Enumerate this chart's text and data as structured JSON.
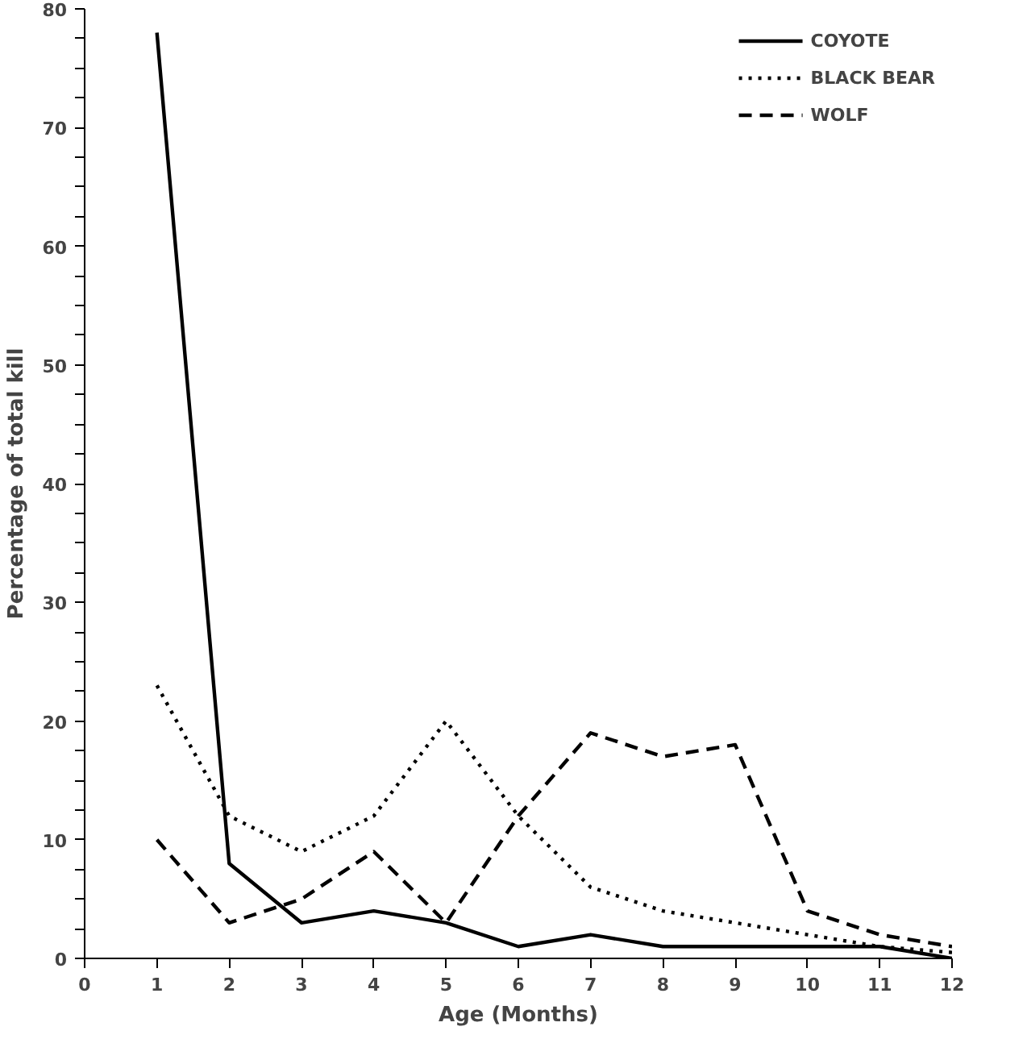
{
  "chart_data": {
    "type": "line",
    "xlabel": "Age (Months)",
    "ylabel": "Percentage of total kill",
    "x": [
      1,
      2,
      3,
      4,
      5,
      6,
      7,
      8,
      9,
      10,
      11,
      12
    ],
    "xlim": [
      0,
      12
    ],
    "xticks": [
      0,
      1,
      2,
      3,
      4,
      5,
      6,
      7,
      8,
      9,
      10,
      11,
      12
    ],
    "ylim": [
      0,
      80
    ],
    "yticks": [
      0,
      {
        "value": 2.5,
        "label": null
      },
      {
        "value": 5,
        "label": null
      },
      {
        "value": 7.5,
        "label": null
      },
      10,
      {
        "value": 12.5,
        "label": null
      },
      {
        "value": 15,
        "label": null
      },
      {
        "value": 17.5,
        "label": null
      },
      20,
      {
        "value": 22.5,
        "label": null
      },
      {
        "value": 25,
        "label": null
      },
      {
        "value": 27.5,
        "label": null
      },
      30,
      {
        "value": 32.5,
        "label": null
      },
      {
        "value": 35,
        "label": null
      },
      {
        "value": 37.5,
        "label": null
      },
      40,
      {
        "value": 42.5,
        "label": null
      },
      {
        "value": 45,
        "label": null
      },
      {
        "value": 47.5,
        "label": null
      },
      50,
      {
        "value": 52.5,
        "label": null
      },
      {
        "value": 55,
        "label": null
      },
      {
        "value": 57.5,
        "label": null
      },
      60,
      {
        "value": 62.5,
        "label": null
      },
      {
        "value": 65,
        "label": null
      },
      {
        "value": 67.5,
        "label": null
      },
      70,
      {
        "value": 72.5,
        "label": null
      },
      {
        "value": 75,
        "label": null
      },
      {
        "value": 77.5,
        "label": null
      },
      80
    ],
    "grid": false,
    "legend": "top right",
    "marker": "none",
    "series": [
      {
        "name": "COYOTE",
        "color": "#000000",
        "line_style": "solid",
        "values": [
          78,
          8,
          3,
          4,
          3,
          1,
          2,
          1,
          1,
          1,
          1,
          0
        ]
      },
      {
        "name": "BLACK BEAR",
        "color": "#000000",
        "line_style": "dotted",
        "values": [
          23,
          12,
          9,
          12,
          20,
          12,
          6,
          4,
          3,
          2,
          1,
          0.5
        ]
      },
      {
        "name": "WOLF",
        "color": "#000000",
        "line_style": "dashed",
        "values": [
          10,
          3,
          5,
          9,
          3,
          12,
          19,
          17,
          18,
          4,
          2,
          1
        ]
      }
    ]
  }
}
